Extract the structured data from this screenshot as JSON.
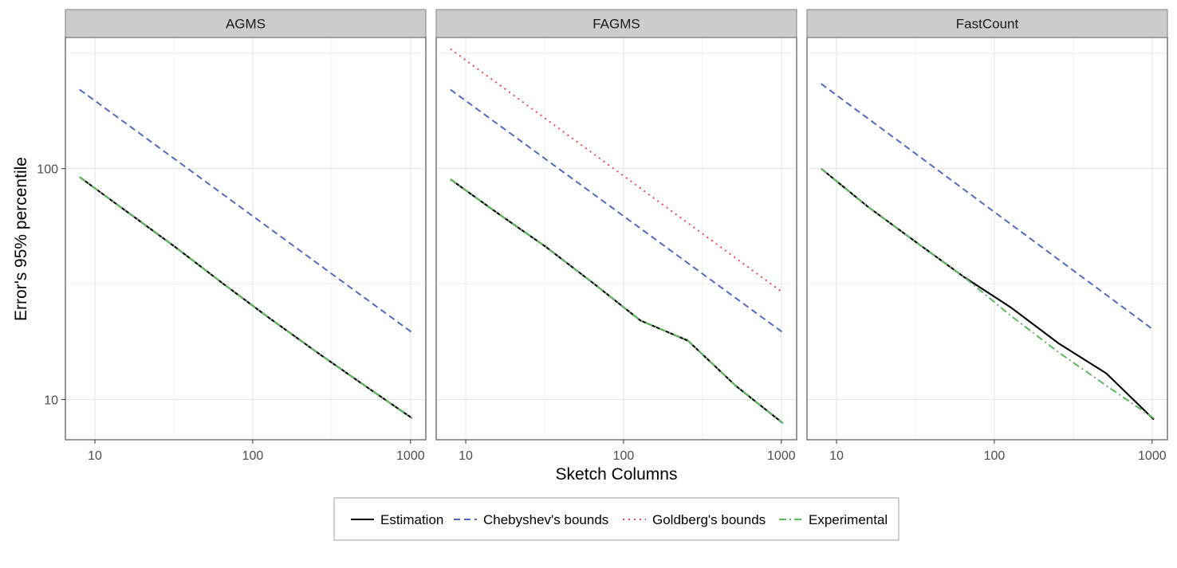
{
  "chart_data": {
    "type": "line",
    "xlabel": "Sketch Columns",
    "ylabel": "Error's 95% percentile",
    "x_scale": "log10",
    "y_scale": "log10",
    "xlim": [
      6.5,
      1250
    ],
    "ylim": [
      6.7,
      370
    ],
    "x_ticks": [
      10,
      100,
      1000
    ],
    "y_ticks": [
      10,
      100
    ],
    "grid": true,
    "legend_position": "bottom",
    "legend": [
      "Estimation",
      "Chebyshev's bounds",
      "Goldberg's bounds",
      "Experimental"
    ],
    "colors": {
      "Estimation": "#000000",
      "Chebyshev's bounds": "#4f6bbd",
      "Goldberg's bounds": "#f0474a",
      "Experimental": "#5cb85c",
      "strip": "#cccccc",
      "panel_border": "#7f7f7f",
      "grid": "#ebebeb"
    },
    "line_styles": {
      "Estimation": "solid",
      "Chebyshev's bounds": "dashed",
      "Goldberg's bounds": "dotted",
      "Experimental": "dashdot"
    },
    "panels": [
      {
        "title": "AGMS",
        "series": [
          {
            "name": "Estimation",
            "x": [
              8,
              16,
              32,
              64,
              128,
              256,
              512,
              1024
            ],
            "y": [
              92,
              65,
              46,
              32,
              22.5,
              16,
              11.5,
              8.3
            ]
          },
          {
            "name": "Chebyshev's bounds",
            "x": [
              8,
              1024
            ],
            "y": [
              220,
              19.5
            ]
          },
          {
            "name": "Experimental",
            "x": [
              8,
              16,
              32,
              64,
              128,
              256,
              512,
              1024
            ],
            "y": [
              92,
              65,
              46,
              32,
              22.5,
              16,
              11.5,
              8.3
            ]
          }
        ]
      },
      {
        "title": "FAGMS",
        "series": [
          {
            "name": "Estimation",
            "x": [
              8,
              16,
              32,
              64,
              128,
              256,
              512,
              1024
            ],
            "y": [
              90,
              64,
              46,
              32,
              22,
              18,
              11.5,
              7.9
            ]
          },
          {
            "name": "Chebyshev's bounds",
            "x": [
              8,
              1024
            ],
            "y": [
              220,
              19.5
            ]
          },
          {
            "name": "Goldberg's bounds",
            "x": [
              8,
              1024
            ],
            "y": [
              330,
              29
            ]
          },
          {
            "name": "Experimental",
            "x": [
              8,
              16,
              32,
              64,
              128,
              256,
              512,
              1024
            ],
            "y": [
              90,
              64,
              46,
              32,
              22,
              18,
              11.5,
              7.9
            ]
          }
        ]
      },
      {
        "title": "FastCount",
        "series": [
          {
            "name": "Estimation",
            "x": [
              8,
              16,
              32,
              64,
              128,
              256,
              512,
              1024
            ],
            "y": [
              100,
              68,
              48,
              34,
              25,
              17.5,
              13,
              8.2
            ]
          },
          {
            "name": "Chebyshev's bounds",
            "x": [
              8,
              1024
            ],
            "y": [
              233,
              20
            ]
          },
          {
            "name": "Experimental",
            "x": [
              8,
              16,
              32,
              64,
              128,
              256,
              512,
              1024
            ],
            "y": [
              100,
              68,
              48,
              34,
              23,
              16,
              11.5,
              8.3
            ]
          }
        ]
      }
    ]
  }
}
